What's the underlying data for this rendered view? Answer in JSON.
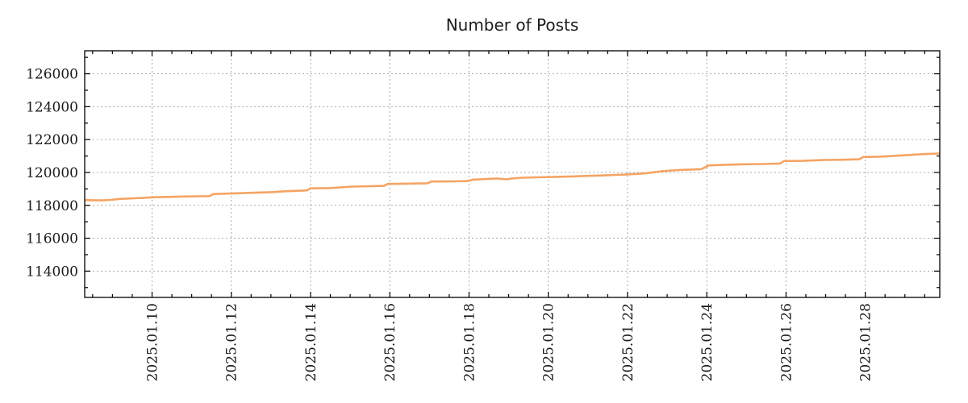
{
  "title": "Number of Posts",
  "colors": {
    "line": "#f4a464",
    "grid": "#aaaaaa",
    "axis": "#000000",
    "text": "#1a1a1a",
    "background": "#ffffff"
  },
  "chart_data": {
    "type": "line",
    "title": "Number of Posts",
    "xlabel": "",
    "ylabel": "",
    "legend": false,
    "grid": true,
    "x_unit": "date",
    "x_tick_labels": [
      "2025.01.10",
      "2025.01.12",
      "2025.01.14",
      "2025.01.16",
      "2025.01.18",
      "2025.01.20",
      "2025.01.22",
      "2025.01.24",
      "2025.01.26",
      "2025.01.28"
    ],
    "x_major_days": [
      10,
      12,
      14,
      16,
      18,
      20,
      22,
      24,
      26,
      28
    ],
    "x_minor_step_days": 0.5,
    "xlim_days": [
      8.3,
      29.88
    ],
    "y_ticks": [
      114000,
      116000,
      118000,
      120000,
      122000,
      124000,
      126000
    ],
    "y_minor_step": 1000,
    "ylim": [
      112400,
      127400
    ],
    "series_name": "number-of-posts",
    "points": [
      [
        8.3,
        118320
      ],
      [
        8.45,
        118310
      ],
      [
        8.75,
        118300
      ],
      [
        8.95,
        118330
      ],
      [
        9.2,
        118390
      ],
      [
        9.55,
        118430
      ],
      [
        9.8,
        118460
      ],
      [
        10.0,
        118490
      ],
      [
        10.3,
        118510
      ],
      [
        10.7,
        118530
      ],
      [
        11.0,
        118540
      ],
      [
        11.45,
        118560
      ],
      [
        11.55,
        118690
      ],
      [
        12.0,
        118720
      ],
      [
        12.5,
        118765
      ],
      [
        13.0,
        118800
      ],
      [
        13.4,
        118860
      ],
      [
        13.9,
        118905
      ],
      [
        14.0,
        119030
      ],
      [
        14.5,
        119050
      ],
      [
        15.05,
        119140
      ],
      [
        15.5,
        119165
      ],
      [
        15.85,
        119185
      ],
      [
        15.95,
        119300
      ],
      [
        16.5,
        119320
      ],
      [
        16.95,
        119340
      ],
      [
        17.05,
        119450
      ],
      [
        17.6,
        119460
      ],
      [
        17.95,
        119475
      ],
      [
        18.1,
        119560
      ],
      [
        18.45,
        119600
      ],
      [
        18.7,
        119635
      ],
      [
        18.95,
        119580
      ],
      [
        19.1,
        119640
      ],
      [
        19.35,
        119680
      ],
      [
        19.7,
        119705
      ],
      [
        20.1,
        119725
      ],
      [
        20.6,
        119760
      ],
      [
        21.0,
        119790
      ],
      [
        21.35,
        119815
      ],
      [
        21.7,
        119850
      ],
      [
        22.0,
        119880
      ],
      [
        22.3,
        119920
      ],
      [
        22.5,
        119965
      ],
      [
        22.9,
        120080
      ],
      [
        23.3,
        120150
      ],
      [
        23.85,
        120200
      ],
      [
        23.95,
        120300
      ],
      [
        24.05,
        120430
      ],
      [
        24.5,
        120470
      ],
      [
        24.95,
        120500
      ],
      [
        25.4,
        120515
      ],
      [
        25.85,
        120540
      ],
      [
        25.95,
        120695
      ],
      [
        26.4,
        120705
      ],
      [
        26.95,
        120760
      ],
      [
        27.45,
        120775
      ],
      [
        27.85,
        120800
      ],
      [
        27.95,
        120940
      ],
      [
        28.4,
        120965
      ],
      [
        28.8,
        121020
      ],
      [
        29.1,
        121060
      ],
      [
        29.35,
        121100
      ],
      [
        29.6,
        121130
      ],
      [
        29.88,
        121150
      ]
    ]
  }
}
